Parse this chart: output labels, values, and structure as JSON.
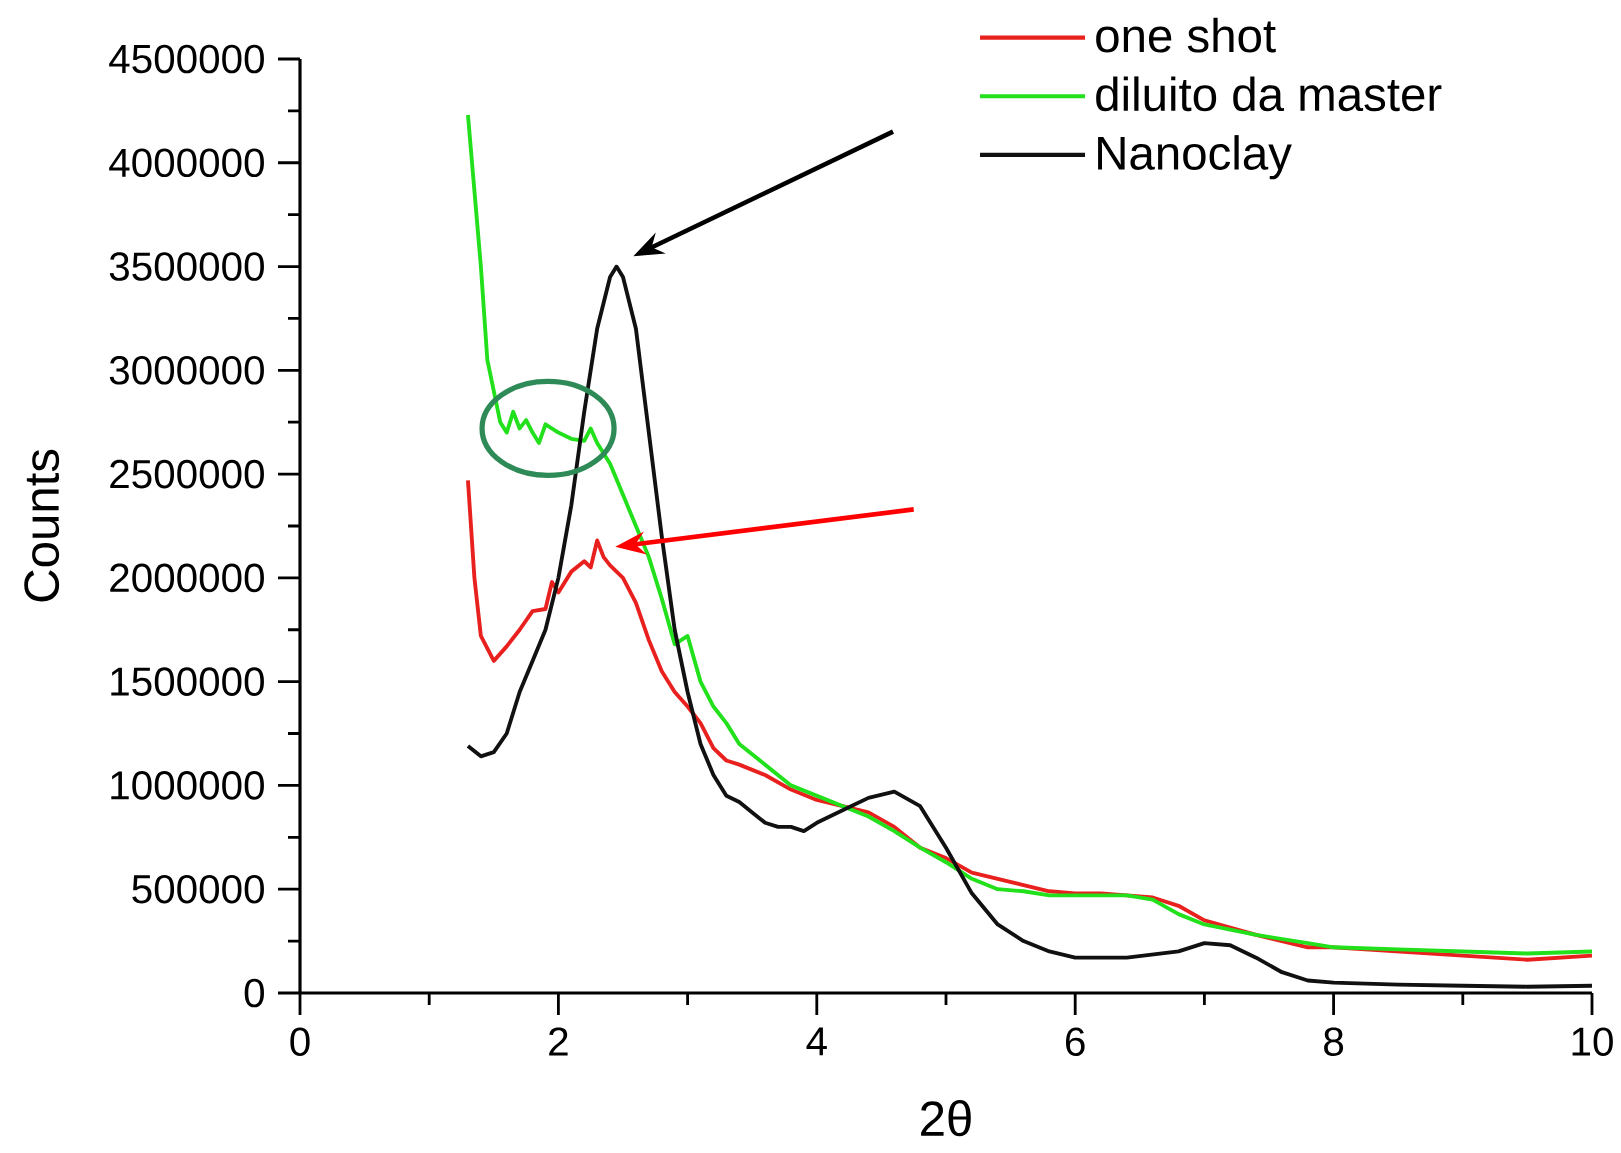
{
  "chart_data": {
    "type": "line",
    "xlabel": "2θ",
    "ylabel": "Counts",
    "xlim": [
      0,
      10
    ],
    "ylim": [
      0,
      4500000
    ],
    "xticks": [
      0,
      2,
      4,
      6,
      8,
      10
    ],
    "yticks": [
      0,
      500000,
      1000000,
      1500000,
      2000000,
      2500000,
      3000000,
      3500000,
      4000000,
      4500000
    ],
    "legend": "top right",
    "series": [
      {
        "name": "one shot",
        "color": "#e8201e",
        "x": [
          1.3,
          1.35,
          1.4,
          1.5,
          1.6,
          1.7,
          1.8,
          1.9,
          1.95,
          2.0,
          2.1,
          2.2,
          2.25,
          2.3,
          2.35,
          2.4,
          2.5,
          2.6,
          2.7,
          2.8,
          2.9,
          3.0,
          3.1,
          3.2,
          3.3,
          3.4,
          3.6,
          3.8,
          4.0,
          4.2,
          4.4,
          4.6,
          4.8,
          5.0,
          5.2,
          5.4,
          5.6,
          5.8,
          6.0,
          6.2,
          6.4,
          6.6,
          6.8,
          7.0,
          7.4,
          7.8,
          8.0,
          8.5,
          9.0,
          9.5,
          10.0
        ],
        "values": [
          2470000,
          2000000,
          1720000,
          1600000,
          1670000,
          1750000,
          1840000,
          1850000,
          1980000,
          1930000,
          2030000,
          2080000,
          2050000,
          2180000,
          2100000,
          2060000,
          2000000,
          1880000,
          1700000,
          1550000,
          1450000,
          1380000,
          1300000,
          1180000,
          1120000,
          1100000,
          1050000,
          980000,
          930000,
          900000,
          870000,
          800000,
          700000,
          650000,
          580000,
          550000,
          520000,
          490000,
          480000,
          480000,
          470000,
          460000,
          420000,
          350000,
          280000,
          220000,
          220000,
          200000,
          180000,
          160000,
          180000
        ]
      },
      {
        "name": "diluito da master",
        "color": "#22e01c",
        "x": [
          1.3,
          1.4,
          1.45,
          1.5,
          1.55,
          1.6,
          1.65,
          1.7,
          1.75,
          1.8,
          1.85,
          1.9,
          2.0,
          2.1,
          2.2,
          2.25,
          2.3,
          2.4,
          2.5,
          2.6,
          2.7,
          2.8,
          2.9,
          3.0,
          3.1,
          3.2,
          3.3,
          3.4,
          3.6,
          3.8,
          4.0,
          4.2,
          4.4,
          4.6,
          4.8,
          5.0,
          5.2,
          5.4,
          5.6,
          5.8,
          6.0,
          6.2,
          6.4,
          6.6,
          6.8,
          7.0,
          7.4,
          7.8,
          8.0,
          8.5,
          9.0,
          9.5,
          10.0
        ],
        "values": [
          4230000,
          3500000,
          3050000,
          2900000,
          2750000,
          2700000,
          2800000,
          2720000,
          2760000,
          2700000,
          2650000,
          2740000,
          2700000,
          2670000,
          2660000,
          2720000,
          2650000,
          2550000,
          2400000,
          2250000,
          2100000,
          1900000,
          1680000,
          1720000,
          1500000,
          1380000,
          1300000,
          1200000,
          1100000,
          1000000,
          950000,
          900000,
          850000,
          780000,
          700000,
          630000,
          550000,
          500000,
          490000,
          470000,
          470000,
          470000,
          470000,
          450000,
          380000,
          330000,
          280000,
          240000,
          220000,
          210000,
          200000,
          190000,
          200000
        ]
      },
      {
        "name": "Nanoclay",
        "color": "#111111",
        "x": [
          1.3,
          1.4,
          1.5,
          1.6,
          1.7,
          1.8,
          1.9,
          2.0,
          2.1,
          2.2,
          2.3,
          2.4,
          2.45,
          2.5,
          2.6,
          2.7,
          2.8,
          2.9,
          3.0,
          3.1,
          3.2,
          3.3,
          3.4,
          3.5,
          3.6,
          3.7,
          3.8,
          3.9,
          4.0,
          4.2,
          4.4,
          4.6,
          4.8,
          5.0,
          5.2,
          5.4,
          5.6,
          5.8,
          6.0,
          6.4,
          6.8,
          7.0,
          7.2,
          7.4,
          7.6,
          7.8,
          8.0,
          8.5,
          9.0,
          9.5,
          10.0
        ],
        "values": [
          1190000,
          1140000,
          1160000,
          1250000,
          1450000,
          1600000,
          1750000,
          2000000,
          2350000,
          2800000,
          3200000,
          3450000,
          3500000,
          3450000,
          3200000,
          2700000,
          2200000,
          1750000,
          1450000,
          1200000,
          1050000,
          950000,
          920000,
          870000,
          820000,
          800000,
          800000,
          780000,
          820000,
          880000,
          940000,
          970000,
          900000,
          700000,
          480000,
          330000,
          250000,
          200000,
          170000,
          170000,
          200000,
          240000,
          230000,
          170000,
          100000,
          60000,
          50000,
          40000,
          35000,
          30000,
          35000
        ]
      }
    ]
  }
}
